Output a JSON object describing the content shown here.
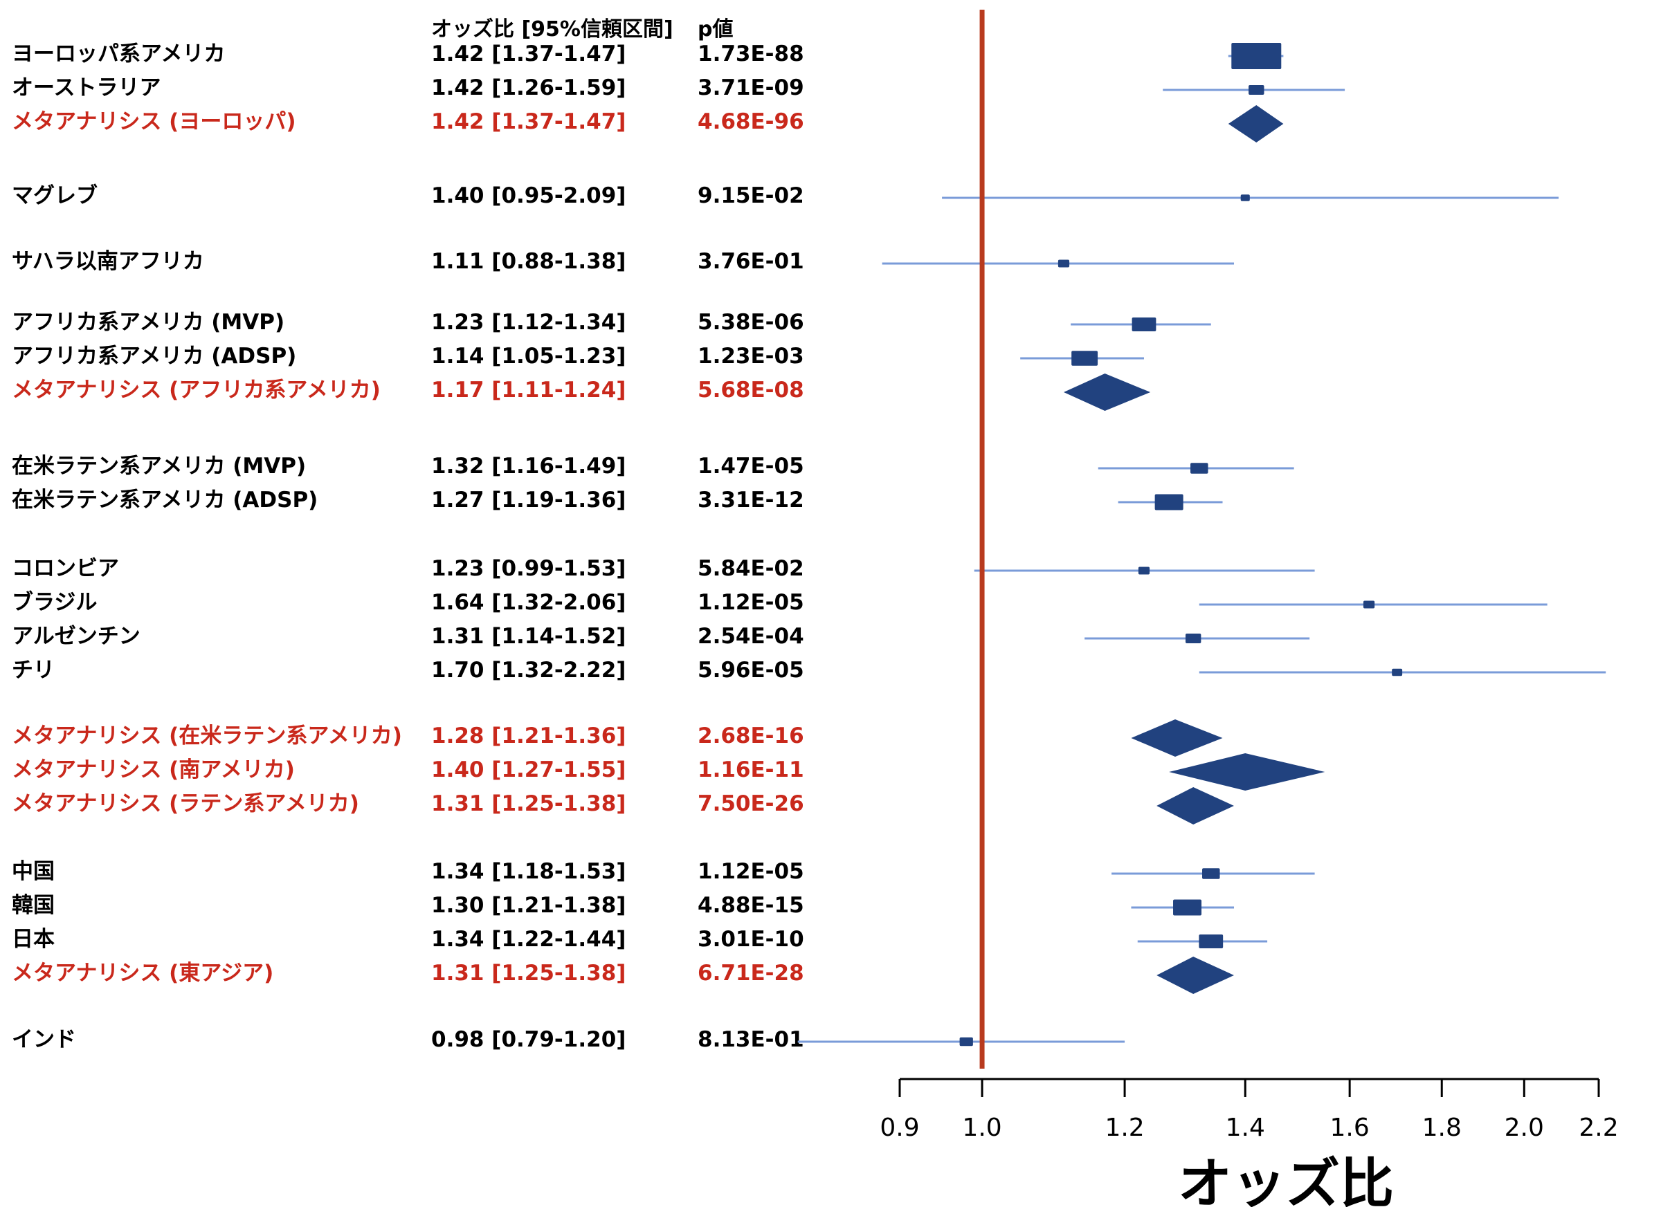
{
  "chart_data": {
    "type": "forest",
    "headers": {
      "or_ci": "オッズ比 [95%信頼区間]",
      "p": "p値"
    },
    "xlabel": "オッズ比",
    "xscale": "log",
    "xlim": [
      0.9,
      2.2
    ],
    "xticks": [
      "0.9",
      "1.0",
      "1.2",
      "1.4",
      "1.6",
      "1.8",
      "2.0",
      "2.2"
    ],
    "reference_line": 1.0,
    "colors": {
      "text": "#000000",
      "meta_text": "#c9281b",
      "reference_line": "#b83a1e",
      "ci_line": "#7a9bd8",
      "marker": "#21427f"
    },
    "rows": [
      {
        "label": "ヨーロッパ系アメリカ",
        "ci_text": "1.42 [1.37-1.47]",
        "p": "1.73E-88",
        "or": 1.42,
        "lo": 1.37,
        "hi": 1.47,
        "kind": "study",
        "weight": 1.0
      },
      {
        "label": "オーストラリア",
        "ci_text": "1.42 [1.26-1.59]",
        "p": "3.71E-09",
        "or": 1.42,
        "lo": 1.26,
        "hi": 1.59,
        "kind": "study",
        "weight": 0.2
      },
      {
        "label": "メタアナリシス (ヨーロッパ)",
        "ci_text": "1.42 [1.37-1.47]",
        "p": "4.68E-96",
        "or": 1.42,
        "lo": 1.37,
        "hi": 1.47,
        "kind": "meta"
      },
      {
        "label": "マグレブ",
        "ci_text": "1.40 [0.95-2.09]",
        "p": "9.15E-02",
        "or": 1.4,
        "lo": 0.95,
        "hi": 2.09,
        "kind": "study",
        "weight": 0.05
      },
      {
        "label": "サハラ以南アフリカ",
        "ci_text": "1.11 [0.88-1.38]",
        "p": "3.76E-01",
        "or": 1.11,
        "lo": 0.88,
        "hi": 1.38,
        "kind": "study",
        "weight": 0.1
      },
      {
        "label": "アフリカ系アメリカ (MVP)",
        "ci_text": "1.23 [1.12-1.34]",
        "p": "5.38E-06",
        "or": 1.23,
        "lo": 1.12,
        "hi": 1.34,
        "kind": "study",
        "weight": 0.4
      },
      {
        "label": "アフリカ系アメリカ (ADSP)",
        "ci_text": "1.14 [1.05-1.23]",
        "p": "1.23E-03",
        "or": 1.14,
        "lo": 1.05,
        "hi": 1.23,
        "kind": "study",
        "weight": 0.45
      },
      {
        "label": "メタアナリシス (アフリカ系アメリカ)",
        "ci_text": "1.17 [1.11-1.24]",
        "p": "5.68E-08",
        "or": 1.17,
        "lo": 1.11,
        "hi": 1.24,
        "kind": "meta"
      },
      {
        "label": "在米ラテン系アメリカ (MVP)",
        "ci_text": "1.32 [1.16-1.49]",
        "p": "1.47E-05",
        "or": 1.32,
        "lo": 1.16,
        "hi": 1.49,
        "kind": "study",
        "weight": 0.25
      },
      {
        "label": "在米ラテン系アメリカ (ADSP)",
        "ci_text": "1.27 [1.19-1.36]",
        "p": "3.31E-12",
        "or": 1.27,
        "lo": 1.19,
        "hi": 1.36,
        "kind": "study",
        "weight": 0.5
      },
      {
        "label": "コロンビア",
        "ci_text": "1.23 [0.99-1.53]",
        "p": "5.84E-02",
        "or": 1.23,
        "lo": 0.99,
        "hi": 1.53,
        "kind": "study",
        "weight": 0.1
      },
      {
        "label": "ブラジル",
        "ci_text": "1.64 [1.32-2.06]",
        "p": "1.12E-05",
        "or": 1.64,
        "lo": 1.32,
        "hi": 2.06,
        "kind": "study",
        "weight": 0.1
      },
      {
        "label": "アルゼンチン",
        "ci_text": "1.31 [1.14-1.52]",
        "p": "2.54E-04",
        "or": 1.31,
        "lo": 1.14,
        "hi": 1.52,
        "kind": "study",
        "weight": 0.2
      },
      {
        "label": "チリ",
        "ci_text": "1.70 [1.32-2.22]",
        "p": "5.96E-05",
        "or": 1.7,
        "lo": 1.32,
        "hi": 2.22,
        "kind": "study",
        "weight": 0.08
      },
      {
        "label": "メタアナリシス (在米ラテン系アメリカ)",
        "ci_text": "1.28 [1.21-1.36]",
        "p": "2.68E-16",
        "or": 1.28,
        "lo": 1.21,
        "hi": 1.36,
        "kind": "meta"
      },
      {
        "label": "メタアナリシス (南アメリカ)",
        "ci_text": "1.40 [1.27-1.55]",
        "p": "1.16E-11",
        "or": 1.4,
        "lo": 1.27,
        "hi": 1.55,
        "kind": "meta"
      },
      {
        "label": "メタアナリシス (ラテン系アメリカ)",
        "ci_text": "1.31 [1.25-1.38]",
        "p": "7.50E-26",
        "or": 1.31,
        "lo": 1.25,
        "hi": 1.38,
        "kind": "meta"
      },
      {
        "label": "中国",
        "ci_text": "1.34 [1.18-1.53]",
        "p": "1.12E-05",
        "or": 1.34,
        "lo": 1.18,
        "hi": 1.53,
        "kind": "study",
        "weight": 0.25
      },
      {
        "label": "韓国",
        "ci_text": "1.30 [1.21-1.38]",
        "p": "4.88E-15",
        "or": 1.3,
        "lo": 1.21,
        "hi": 1.38,
        "kind": "study",
        "weight": 0.5
      },
      {
        "label": "日本",
        "ci_text": "1.34 [1.22-1.44]",
        "p": "3.01E-10",
        "or": 1.34,
        "lo": 1.22,
        "hi": 1.44,
        "kind": "study",
        "weight": 0.4
      },
      {
        "label": "メタアナリシス (東アジア)",
        "ci_text": "1.31 [1.25-1.38]",
        "p": "6.71E-28",
        "or": 1.31,
        "lo": 1.25,
        "hi": 1.38,
        "kind": "meta"
      },
      {
        "label": "インド",
        "ci_text": "0.98 [0.79-1.20]",
        "p": "8.13E-01",
        "or": 0.98,
        "lo": 0.79,
        "hi": 1.2,
        "kind": "study",
        "weight": 0.15
      }
    ]
  }
}
